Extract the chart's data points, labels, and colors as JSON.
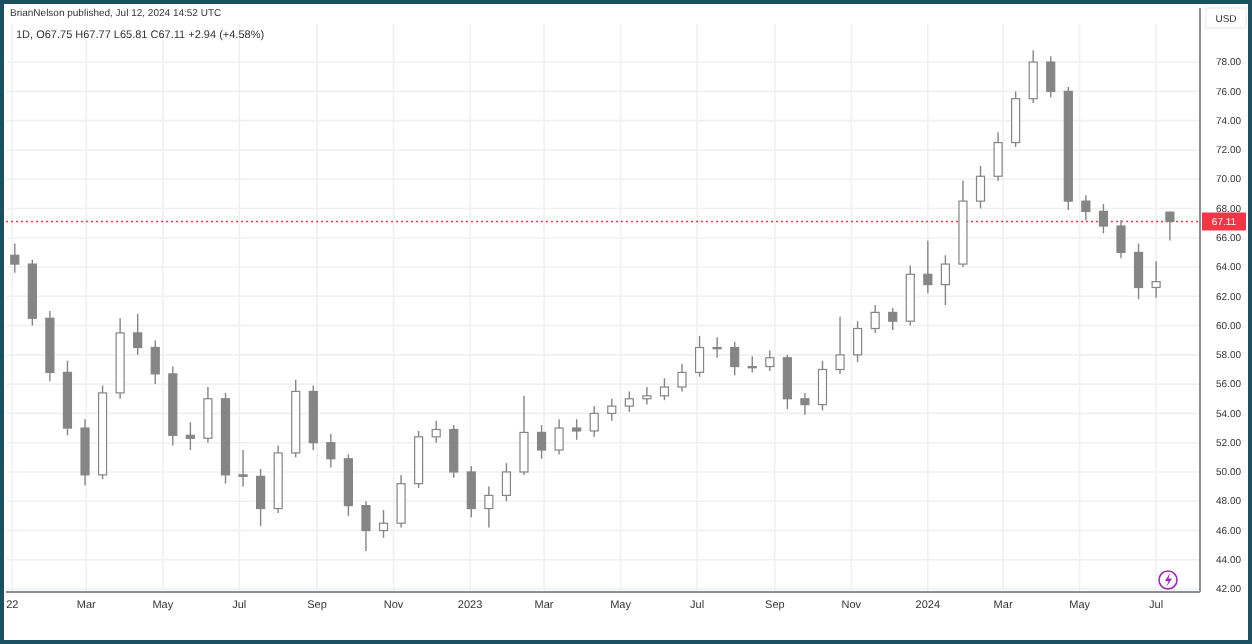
{
  "chart_data": {
    "type": "candlestick",
    "title": "1D, O67.75 H67.77 L65.81 C67.11 +2.94 (+4.58%)",
    "annotations": [
      "BrianNelson published, Jul 12, 2024 14:52 UTC"
    ],
    "ylabel": "USD",
    "xlim": [
      "2021-12-27",
      "2024-08-05"
    ],
    "xticks": [
      {
        "value": "2022-01-01",
        "label": "22"
      },
      {
        "value": "2022-03-01",
        "label": "Mar"
      },
      {
        "value": "2022-05-01",
        "label": "May"
      },
      {
        "value": "2022-07-01",
        "label": "Jul"
      },
      {
        "value": "2022-09-01",
        "label": "Sep"
      },
      {
        "value": "2022-11-01",
        "label": "Nov"
      },
      {
        "value": "2023-01-01",
        "label": "2023"
      },
      {
        "value": "2023-03-01",
        "label": "Mar"
      },
      {
        "value": "2023-05-01",
        "label": "May"
      },
      {
        "value": "2023-07-01",
        "label": "Jul"
      },
      {
        "value": "2023-09-01",
        "label": "Sep"
      },
      {
        "value": "2023-11-01",
        "label": "Nov"
      },
      {
        "value": "2024-01-01",
        "label": "2024"
      },
      {
        "value": "2024-03-01",
        "label": "Mar"
      },
      {
        "value": "2024-05-01",
        "label": "May"
      },
      {
        "value": "2024-07-01",
        "label": "Jul"
      }
    ],
    "ylim": [
      41.8,
      80.6
    ],
    "yticks": [
      {
        "value": 42,
        "label": "42.00"
      },
      {
        "value": 44,
        "label": "44.00"
      },
      {
        "value": 46,
        "label": "46.00"
      },
      {
        "value": 48,
        "label": "48.00"
      },
      {
        "value": 50,
        "label": "50.00"
      },
      {
        "value": 52,
        "label": "52.00"
      },
      {
        "value": 54,
        "label": "54.00"
      },
      {
        "value": 56,
        "label": "56.00"
      },
      {
        "value": 58,
        "label": "58.00"
      },
      {
        "value": 60,
        "label": "60.00"
      },
      {
        "value": 62,
        "label": "62.00"
      },
      {
        "value": 64,
        "label": "64.00"
      },
      {
        "value": 66,
        "label": "66.00"
      },
      {
        "value": 68,
        "label": "68.00"
      },
      {
        "value": 70,
        "label": "70.00"
      },
      {
        "value": 72,
        "label": "72.00"
      },
      {
        "value": 74,
        "label": "74.00"
      },
      {
        "value": 76,
        "label": "76.00"
      },
      {
        "value": 78,
        "label": "78.00"
      }
    ],
    "grid": true,
    "ref_lines": [
      {
        "axis": "y",
        "value": 67.11,
        "label": "67.11",
        "color": "#f23645",
        "line_style": "dotted"
      }
    ],
    "series": [
      {
        "color": "#858585",
        "x": [
          "2022-01-03",
          "2022-01-17",
          "2022-01-31",
          "2022-02-14",
          "2022-02-28",
          "2022-03-14",
          "2022-03-28",
          "2022-04-11",
          "2022-04-25",
          "2022-05-09",
          "2022-05-23",
          "2022-06-06",
          "2022-06-20",
          "2022-07-04",
          "2022-07-18",
          "2022-08-01",
          "2022-08-15",
          "2022-08-29",
          "2022-09-12",
          "2022-09-26",
          "2022-10-10",
          "2022-10-24",
          "2022-11-07",
          "2022-11-21",
          "2022-12-05",
          "2022-12-19",
          "2023-01-02",
          "2023-01-16",
          "2023-01-30",
          "2023-02-13",
          "2023-02-27",
          "2023-03-13",
          "2023-03-27",
          "2023-04-10",
          "2023-04-24",
          "2023-05-08",
          "2023-05-22",
          "2023-06-05",
          "2023-06-19",
          "2023-07-03",
          "2023-07-17",
          "2023-07-31",
          "2023-08-14",
          "2023-08-28",
          "2023-09-11",
          "2023-09-25",
          "2023-10-09",
          "2023-10-23",
          "2023-11-06",
          "2023-11-20",
          "2023-12-04",
          "2023-12-18",
          "2024-01-01",
          "2024-01-15",
          "2024-01-29",
          "2024-02-12",
          "2024-02-26",
          "2024-03-11",
          "2024-03-25",
          "2024-04-08",
          "2024-04-22",
          "2024-05-06",
          "2024-05-20",
          "2024-06-03",
          "2024-06-17",
          "2024-07-01",
          "2024-07-12"
        ],
        "ohlc": [
          [
            64.8,
            65.6,
            63.6,
            64.2
          ],
          [
            64.2,
            64.5,
            60.0,
            60.5
          ],
          [
            60.5,
            61.0,
            56.2,
            56.8
          ],
          [
            56.8,
            57.6,
            52.5,
            53.0
          ],
          [
            53.0,
            53.6,
            49.1,
            49.8
          ],
          [
            49.8,
            55.9,
            49.5,
            55.4
          ],
          [
            55.4,
            60.5,
            55.0,
            59.5
          ],
          [
            59.5,
            60.8,
            58.0,
            58.5
          ],
          [
            58.5,
            59.0,
            56.0,
            56.7
          ],
          [
            56.7,
            57.2,
            51.8,
            52.5
          ],
          [
            52.5,
            53.4,
            51.5,
            52.3
          ],
          [
            52.3,
            55.8,
            52.0,
            55.0
          ],
          [
            55.0,
            55.4,
            49.2,
            49.8
          ],
          [
            49.8,
            51.5,
            49.0,
            49.7
          ],
          [
            49.7,
            50.2,
            46.3,
            47.5
          ],
          [
            47.5,
            51.8,
            47.2,
            51.3
          ],
          [
            51.3,
            56.3,
            51.0,
            55.5
          ],
          [
            55.5,
            55.9,
            51.5,
            52.0
          ],
          [
            52.0,
            52.6,
            50.3,
            50.9
          ],
          [
            50.9,
            51.2,
            47.0,
            47.7
          ],
          [
            47.7,
            48.0,
            44.6,
            46.0
          ],
          [
            46.0,
            47.4,
            45.5,
            46.5
          ],
          [
            46.5,
            49.8,
            46.2,
            49.2
          ],
          [
            49.2,
            52.8,
            48.9,
            52.4
          ],
          [
            52.4,
            53.5,
            52.0,
            52.9
          ],
          [
            52.9,
            53.2,
            49.6,
            50.0
          ],
          [
            50.0,
            50.4,
            46.9,
            47.5
          ],
          [
            47.5,
            49.0,
            46.2,
            48.4
          ],
          [
            48.4,
            50.6,
            48.0,
            50.0
          ],
          [
            50.0,
            55.2,
            49.8,
            52.7
          ],
          [
            52.7,
            53.2,
            50.9,
            51.5
          ],
          [
            51.5,
            53.6,
            51.2,
            53.0
          ],
          [
            53.0,
            53.6,
            52.2,
            52.8
          ],
          [
            52.8,
            54.5,
            52.4,
            54.0
          ],
          [
            54.0,
            55.0,
            53.5,
            54.5
          ],
          [
            54.5,
            55.5,
            54.1,
            55.0
          ],
          [
            55.0,
            55.8,
            54.6,
            55.2
          ],
          [
            55.2,
            56.4,
            54.9,
            55.8
          ],
          [
            55.8,
            57.4,
            55.5,
            56.8
          ],
          [
            56.8,
            59.3,
            56.5,
            58.5
          ],
          [
            58.5,
            59.2,
            57.8,
            58.5
          ],
          [
            58.5,
            58.9,
            56.6,
            57.2
          ],
          [
            57.2,
            57.9,
            56.8,
            57.2
          ],
          [
            57.2,
            58.3,
            56.9,
            57.8
          ],
          [
            57.8,
            58.0,
            54.3,
            55.0
          ],
          [
            55.0,
            55.4,
            53.9,
            54.6
          ],
          [
            54.6,
            57.6,
            54.2,
            57.0
          ],
          [
            57.0,
            60.6,
            56.7,
            58.0
          ],
          [
            58.0,
            60.3,
            57.5,
            59.8
          ],
          [
            59.8,
            61.4,
            59.5,
            60.9
          ],
          [
            60.9,
            61.2,
            59.7,
            60.3
          ],
          [
            60.3,
            64.1,
            60.0,
            63.5
          ],
          [
            63.5,
            65.8,
            62.2,
            62.8
          ],
          [
            62.8,
            64.8,
            61.4,
            64.2
          ],
          [
            64.2,
            69.9,
            64.0,
            68.5
          ],
          [
            68.5,
            70.9,
            68.0,
            70.2
          ],
          [
            70.2,
            73.2,
            69.9,
            72.5
          ],
          [
            72.5,
            76.0,
            72.2,
            75.5
          ],
          [
            75.5,
            78.8,
            75.2,
            78.0
          ],
          [
            78.0,
            78.4,
            75.6,
            76.0
          ],
          [
            76.0,
            76.3,
            67.9,
            68.5
          ],
          [
            68.5,
            68.9,
            67.2,
            67.8
          ],
          [
            67.8,
            68.3,
            66.3,
            66.8
          ],
          [
            66.8,
            67.2,
            64.6,
            65.0
          ],
          [
            65.0,
            65.6,
            61.8,
            62.6
          ],
          [
            62.6,
            64.4,
            61.9,
            63.0
          ],
          [
            67.75,
            67.77,
            65.81,
            67.11
          ]
        ]
      }
    ]
  }
}
